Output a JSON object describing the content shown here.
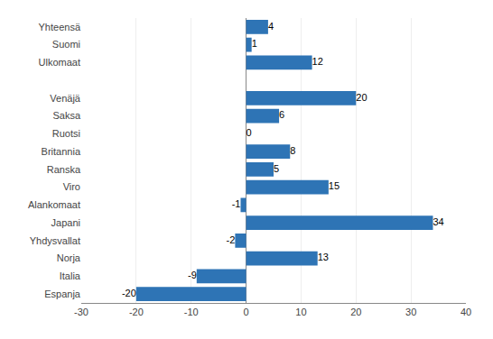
{
  "chart_data": {
    "type": "bar",
    "orientation": "horizontal",
    "categories": [
      "Yhteensä",
      "Suomi",
      "Ulkomaat",
      null,
      "Venäjä",
      "Saksa",
      "Ruotsi",
      "Britannia",
      "Ranska",
      "Viro",
      "Alankomaat",
      "Japani",
      "Yhdysvallat",
      "Norja",
      "Italia",
      "Espanja"
    ],
    "values": [
      4,
      1,
      12,
      null,
      20,
      6,
      0,
      8,
      5,
      15,
      -1,
      34,
      -2,
      13,
      -9,
      -20
    ],
    "color": "#2e74b5",
    "xlim": [
      -30,
      40
    ],
    "xticks": [
      -30,
      -20,
      -10,
      0,
      10,
      20,
      30,
      40
    ],
    "grid": true,
    "data_labels": true
  }
}
